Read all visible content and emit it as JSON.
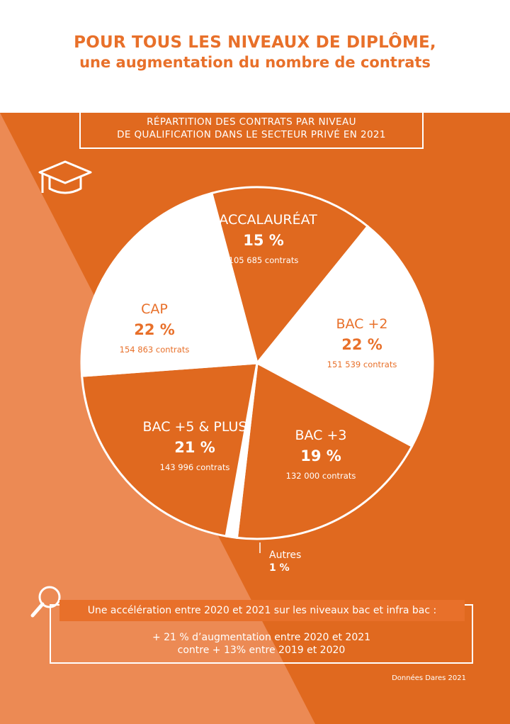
{
  "headline": {
    "line1": "POUR TOUS LES NIVEAUX DE DIPLÔME,",
    "line2": "une augmentation du nombre de contrats"
  },
  "chart_title": {
    "line1": "RÉPARTITION DES CONTRATS PAR NIVEAU",
    "line2": "DE QUALIFICATION DANS LE SECTEUR PRIVÉ EN 2021"
  },
  "chart_data": {
    "type": "pie",
    "slices": [
      {
        "label": "BACCALAURÉAT",
        "percent": 15,
        "percent_label": "15 %",
        "contracts": 105685,
        "contracts_label": "105 685 contrats",
        "color": "#e0691f"
      },
      {
        "label": "BAC +2",
        "percent": 22,
        "percent_label": "22 %",
        "contracts": 151539,
        "contracts_label": "151 539 contrats",
        "color": "#ffffff"
      },
      {
        "label": "BAC +3",
        "percent": 19,
        "percent_label": "19 %",
        "contracts": 132000,
        "contracts_label": "132 000 contrats",
        "color": "#e0691f"
      },
      {
        "label": "Autres",
        "percent": 1,
        "percent_label": "1 %",
        "contracts": null,
        "contracts_label": "",
        "color": "#ffffff"
      },
      {
        "label": "BAC +5 & PLUS",
        "percent": 21,
        "percent_label": "21 %",
        "contracts": 143996,
        "contracts_label": "143 996 contrats",
        "color": "#e0691f"
      },
      {
        "label": "CAP",
        "percent": 22,
        "percent_label": "22 %",
        "contracts": 154863,
        "contracts_label": "154 863 contrats",
        "color": "#ffffff"
      }
    ]
  },
  "info_box": {
    "highlight": "Une accélération entre 2020 et 2021 sur les niveaux bac et infra bac :",
    "line2": "+ 21 % d’augmentation entre 2020 et 2021",
    "line3": "contre + 13% entre 2019 et 2020"
  },
  "source": "Données Dares 2021",
  "colors": {
    "orange_dark": "#e0691f",
    "orange_light": "#ec8a54",
    "headline_orange": "#e8702a",
    "white": "#ffffff"
  },
  "icons": {
    "graduation": "graduation-cap-icon",
    "search": "magnifier-icon"
  }
}
